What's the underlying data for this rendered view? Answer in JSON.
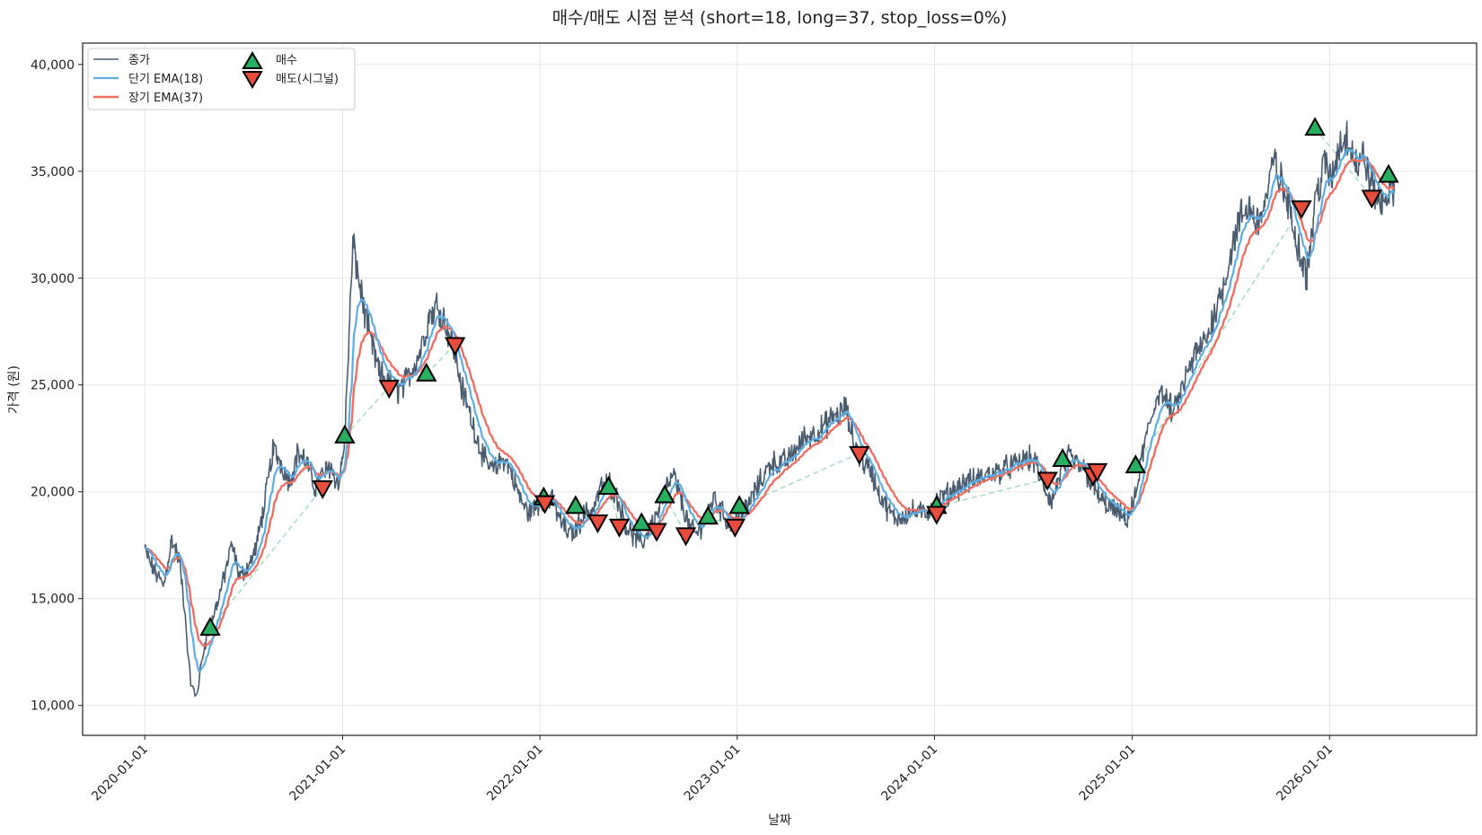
{
  "chart_data": {
    "type": "line",
    "title": "매수/매도 시점 분석 (short=18, long=37, stop_loss=0%)",
    "xlabel": "날짜",
    "ylabel": "가격 (원)",
    "xlim": [
      "2019-09-08",
      "2026-09-30"
    ],
    "ylim": [
      8600,
      41000
    ],
    "grid": true,
    "legend_position": "top-left",
    "x_ticks": [
      "2020-01-01",
      "2021-01-01",
      "2022-01-01",
      "2023-01-01",
      "2024-01-01",
      "2025-01-01",
      "2026-01-01"
    ],
    "y_ticks": [
      10000,
      15000,
      20000,
      25000,
      30000,
      35000,
      40000
    ],
    "y_tick_labels": [
      "10,000",
      "15,000",
      "20,000",
      "25,000",
      "30,000",
      "35,000",
      "40,000"
    ],
    "colors": {
      "close": "#4a5d70",
      "ema_short": "#5dade2",
      "ema_long": "#ec7063",
      "buy": "#27ae60",
      "sell": "#e74c3c",
      "trade_line": "#a9dfbf"
    },
    "legend": [
      {
        "key": "close",
        "label": "종가"
      },
      {
        "key": "ema_short",
        "label": "단기 EMA(18)"
      },
      {
        "key": "ema_long",
        "label": "장기 EMA(37)"
      },
      {
        "key": "buy",
        "label": "매수"
      },
      {
        "key": "sell",
        "label": "매도(시그널)"
      }
    ],
    "series_anchors": {
      "close": [
        [
          "2020-01-01",
          17300
        ],
        [
          "2020-01-20",
          16200
        ],
        [
          "2020-02-05",
          15600
        ],
        [
          "2020-02-20",
          17800
        ],
        [
          "2020-03-05",
          16800
        ],
        [
          "2020-03-15",
          14500
        ],
        [
          "2020-03-25",
          11200
        ],
        [
          "2020-04-05",
          10300
        ],
        [
          "2020-04-20",
          12800
        ],
        [
          "2020-05-05",
          14000
        ],
        [
          "2020-05-25",
          15800
        ],
        [
          "2020-06-10",
          17500
        ],
        [
          "2020-06-25",
          16000
        ],
        [
          "2020-07-10",
          16500
        ],
        [
          "2020-07-25",
          17400
        ],
        [
          "2020-08-10",
          19500
        ],
        [
          "2020-08-25",
          22000
        ],
        [
          "2020-09-10",
          21300
        ],
        [
          "2020-09-25",
          20500
        ],
        [
          "2020-10-10",
          21800
        ],
        [
          "2020-10-25",
          21500
        ],
        [
          "2020-11-10",
          20200
        ],
        [
          "2020-11-25",
          20800
        ],
        [
          "2020-12-10",
          21200
        ],
        [
          "2020-12-25",
          20300
        ],
        [
          "2021-01-05",
          22500
        ],
        [
          "2021-01-12",
          26800
        ],
        [
          "2021-01-20",
          31500
        ],
        [
          "2021-02-05",
          29200
        ],
        [
          "2021-02-20",
          27200
        ],
        [
          "2021-03-10",
          25500
        ],
        [
          "2021-03-25",
          25200
        ],
        [
          "2021-04-10",
          24700
        ],
        [
          "2021-04-25",
          25000
        ],
        [
          "2021-05-10",
          25800
        ],
        [
          "2021-05-25",
          26600
        ],
        [
          "2021-06-10",
          28200
        ],
        [
          "2021-06-25",
          28800
        ],
        [
          "2021-07-10",
          28000
        ],
        [
          "2021-07-25",
          26800
        ],
        [
          "2021-08-10",
          24800
        ],
        [
          "2021-08-25",
          23600
        ],
        [
          "2021-09-10",
          22300
        ],
        [
          "2021-09-25",
          21200
        ],
        [
          "2021-10-10",
          21000
        ],
        [
          "2021-10-25",
          21600
        ],
        [
          "2021-11-10",
          20900
        ],
        [
          "2021-11-25",
          19700
        ],
        [
          "2021-12-10",
          19000
        ],
        [
          "2021-12-25",
          19300
        ],
        [
          "2022-01-10",
          19700
        ],
        [
          "2022-01-25",
          19500
        ],
        [
          "2022-02-10",
          18500
        ],
        [
          "2022-02-25",
          18000
        ],
        [
          "2022-03-10",
          18300
        ],
        [
          "2022-03-25",
          19000
        ],
        [
          "2022-04-10",
          19200
        ],
        [
          "2022-04-25",
          20200
        ],
        [
          "2022-05-10",
          20400
        ],
        [
          "2022-05-25",
          19600
        ],
        [
          "2022-06-10",
          18400
        ],
        [
          "2022-06-25",
          17800
        ],
        [
          "2022-07-10",
          17600
        ],
        [
          "2022-07-25",
          18400
        ],
        [
          "2022-08-10",
          19200
        ],
        [
          "2022-08-25",
          20300
        ],
        [
          "2022-09-05",
          20800
        ],
        [
          "2022-09-20",
          19600
        ],
        [
          "2022-10-05",
          18300
        ],
        [
          "2022-10-20",
          18000
        ],
        [
          "2022-11-05",
          19000
        ],
        [
          "2022-11-20",
          19700
        ],
        [
          "2022-12-05",
          19000
        ],
        [
          "2022-12-20",
          18400
        ],
        [
          "2023-01-05",
          18800
        ],
        [
          "2023-01-20",
          19300
        ],
        [
          "2023-02-05",
          20100
        ],
        [
          "2023-02-20",
          20800
        ],
        [
          "2023-03-05",
          21400
        ],
        [
          "2023-03-20",
          21300
        ],
        [
          "2023-04-05",
          21500
        ],
        [
          "2023-04-20",
          22000
        ],
        [
          "2023-05-05",
          22500
        ],
        [
          "2023-05-20",
          22700
        ],
        [
          "2023-06-05",
          22900
        ],
        [
          "2023-06-20",
          23300
        ],
        [
          "2023-07-05",
          23600
        ],
        [
          "2023-07-20",
          23900
        ],
        [
          "2023-08-05",
          22400
        ],
        [
          "2023-08-20",
          21400
        ],
        [
          "2023-09-05",
          21000
        ],
        [
          "2023-09-20",
          20000
        ],
        [
          "2023-10-05",
          19200
        ],
        [
          "2023-10-20",
          18700
        ],
        [
          "2023-11-05",
          18900
        ],
        [
          "2023-11-20",
          19100
        ],
        [
          "2023-12-05",
          19000
        ],
        [
          "2023-12-20",
          19100
        ],
        [
          "2024-01-05",
          19500
        ],
        [
          "2024-01-20",
          19800
        ],
        [
          "2024-02-05",
          20100
        ],
        [
          "2024-02-20",
          20300
        ],
        [
          "2024-03-05",
          20500
        ],
        [
          "2024-03-20",
          20600
        ],
        [
          "2024-04-05",
          20800
        ],
        [
          "2024-04-20",
          20900
        ],
        [
          "2024-05-05",
          21000
        ],
        [
          "2024-05-20",
          21200
        ],
        [
          "2024-06-05",
          21300
        ],
        [
          "2024-06-20",
          21600
        ],
        [
          "2024-07-05",
          21400
        ],
        [
          "2024-07-20",
          20300
        ],
        [
          "2024-08-05",
          19500
        ],
        [
          "2024-08-20",
          20800
        ],
        [
          "2024-09-05",
          21600
        ],
        [
          "2024-09-20",
          21300
        ],
        [
          "2024-10-05",
          21000
        ],
        [
          "2024-10-20",
          20200
        ],
        [
          "2024-11-05",
          19600
        ],
        [
          "2024-11-20",
          19300
        ],
        [
          "2024-12-05",
          19000
        ],
        [
          "2024-12-20",
          18700
        ],
        [
          "2025-01-05",
          19500
        ],
        [
          "2025-01-20",
          21800
        ],
        [
          "2025-02-05",
          23400
        ],
        [
          "2025-02-20",
          24800
        ],
        [
          "2025-03-05",
          24200
        ],
        [
          "2025-03-20",
          23700
        ],
        [
          "2025-04-05",
          25000
        ],
        [
          "2025-04-20",
          26000
        ],
        [
          "2025-05-05",
          26700
        ],
        [
          "2025-05-20",
          27300
        ],
        [
          "2025-06-05",
          28600
        ],
        [
          "2025-06-20",
          29800
        ],
        [
          "2025-07-05",
          31500
        ],
        [
          "2025-07-20",
          32800
        ],
        [
          "2025-08-05",
          33400
        ],
        [
          "2025-08-20",
          32600
        ],
        [
          "2025-09-05",
          33600
        ],
        [
          "2025-09-20",
          35500
        ],
        [
          "2025-10-05",
          34300
        ],
        [
          "2025-10-20",
          33100
        ],
        [
          "2025-11-05",
          31500
        ],
        [
          "2025-11-20",
          30200
        ],
        [
          "2025-12-05",
          33500
        ],
        [
          "2025-12-20",
          35300
        ],
        [
          "2026-01-05",
          34600
        ],
        [
          "2026-01-20",
          36400
        ],
        [
          "2026-02-05",
          36600
        ],
        [
          "2026-02-20",
          35300
        ],
        [
          "2026-03-05",
          35700
        ],
        [
          "2026-03-20",
          34300
        ],
        [
          "2026-04-05",
          33500
        ],
        [
          "2026-04-20",
          34100
        ],
        [
          "2026-05-01",
          34000
        ]
      ]
    },
    "ema_spans": {
      "short": 18,
      "long": 37
    },
    "buy_signals": [
      {
        "date": "2020-05-01",
        "price": 13600
      },
      {
        "date": "2021-01-05",
        "price": 22600
      },
      {
        "date": "2021-06-05",
        "price": 25500
      },
      {
        "date": "2022-01-08",
        "price": 19700
      },
      {
        "date": "2022-03-08",
        "price": 19300
      },
      {
        "date": "2022-05-08",
        "price": 20200
      },
      {
        "date": "2022-07-08",
        "price": 18500
      },
      {
        "date": "2022-08-20",
        "price": 19800
      },
      {
        "date": "2022-11-08",
        "price": 18800
      },
      {
        "date": "2023-01-05",
        "price": 19300
      },
      {
        "date": "2024-01-05",
        "price": 19300
      },
      {
        "date": "2024-08-25",
        "price": 21500
      },
      {
        "date": "2025-01-07",
        "price": 21200
      },
      {
        "date": "2025-12-05",
        "price": 37000
      },
      {
        "date": "2026-04-20",
        "price": 34800
      }
    ],
    "sell_signals": [
      {
        "date": "2020-11-25",
        "price": 20200
      },
      {
        "date": "2021-03-28",
        "price": 24900
      },
      {
        "date": "2021-07-28",
        "price": 26900
      },
      {
        "date": "2022-01-10",
        "price": 19500
      },
      {
        "date": "2022-04-18",
        "price": 18600
      },
      {
        "date": "2022-05-28",
        "price": 18400
      },
      {
        "date": "2022-08-05",
        "price": 18200
      },
      {
        "date": "2022-09-28",
        "price": 18000
      },
      {
        "date": "2022-12-28",
        "price": 18400
      },
      {
        "date": "2023-08-15",
        "price": 21800
      },
      {
        "date": "2024-01-05",
        "price": 19000
      },
      {
        "date": "2024-07-28",
        "price": 20600
      },
      {
        "date": "2024-10-20",
        "price": 20800
      },
      {
        "date": "2024-10-28",
        "price": 21000
      },
      {
        "date": "2025-11-10",
        "price": 33300
      },
      {
        "date": "2026-03-20",
        "price": 33800
      }
    ]
  }
}
